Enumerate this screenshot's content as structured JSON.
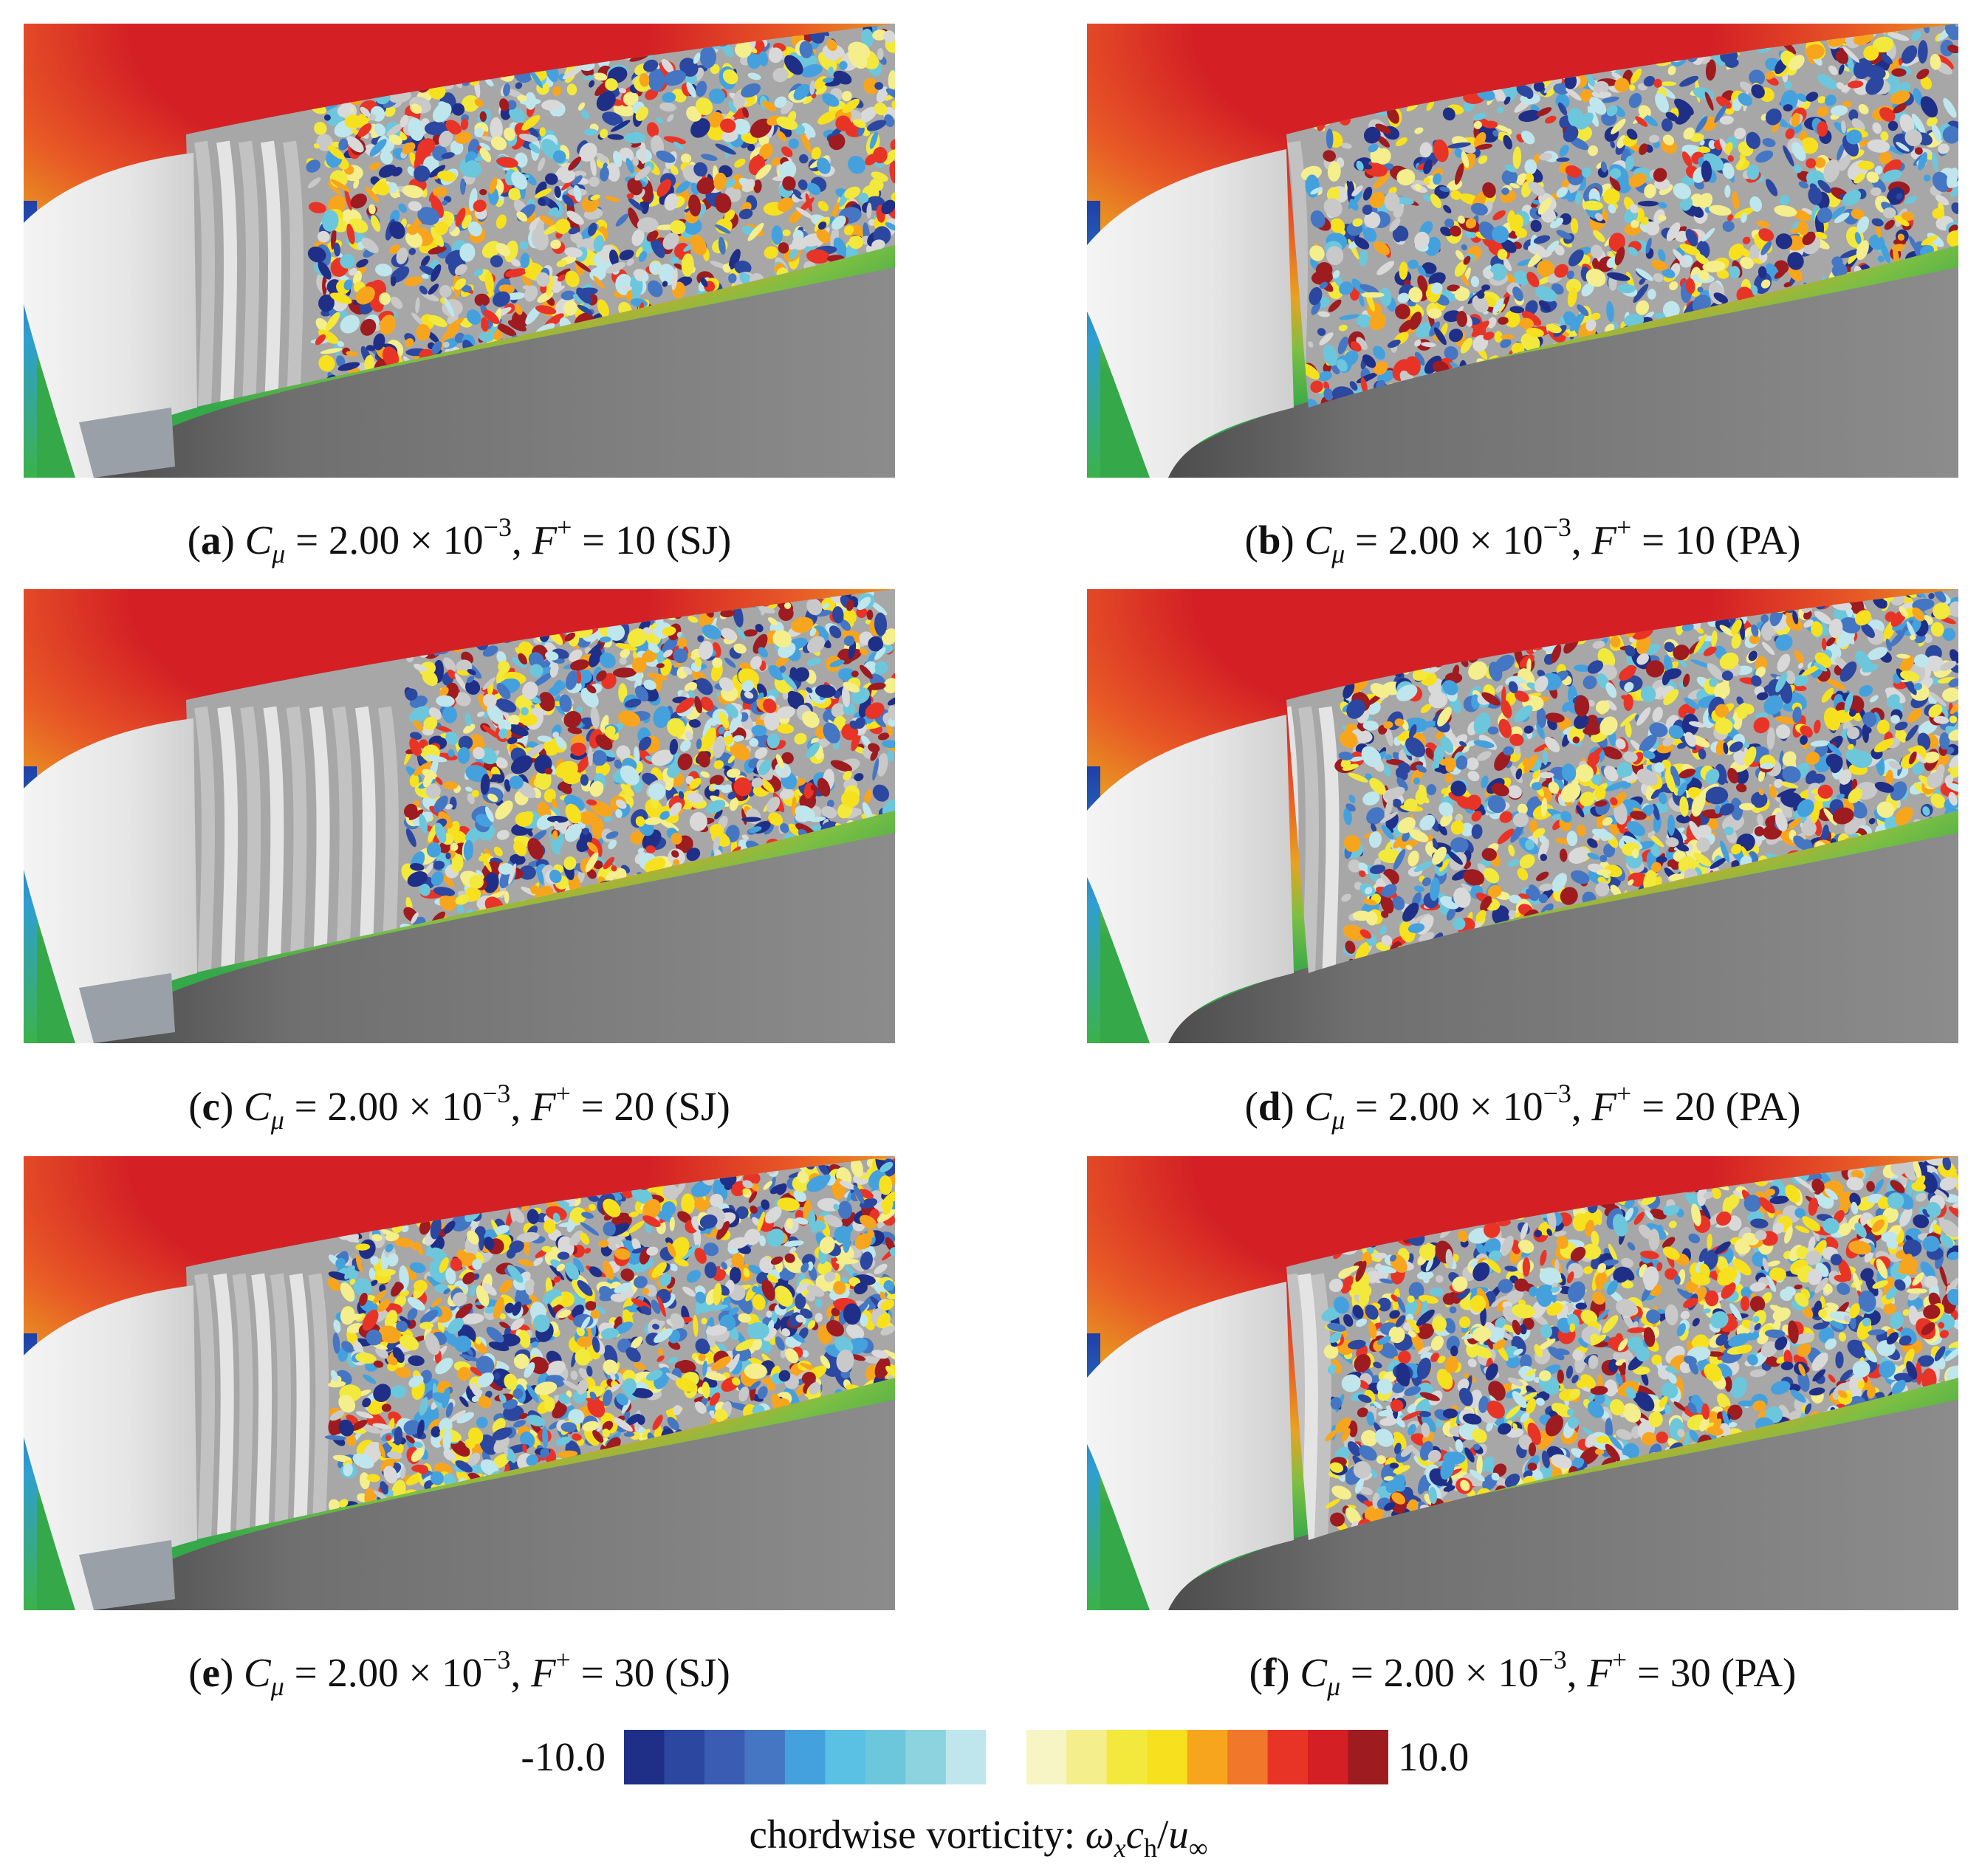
{
  "panels": [
    {
      "id": "a",
      "letter": "a",
      "cmu_value": "2.00",
      "cmu_exp": "−3",
      "fplus_value": "10",
      "method": "(SJ)"
    },
    {
      "id": "b",
      "letter": "b",
      "cmu_value": "2.00",
      "cmu_exp": "−3",
      "fplus_value": "10",
      "method": "(PA)"
    },
    {
      "id": "c",
      "letter": "c",
      "cmu_value": "2.00",
      "cmu_exp": "−3",
      "fplus_value": "20",
      "method": "(SJ)"
    },
    {
      "id": "d",
      "letter": "d",
      "cmu_value": "2.00",
      "cmu_exp": "−3",
      "fplus_value": "20",
      "method": "(PA)"
    },
    {
      "id": "e",
      "letter": "e",
      "cmu_value": "2.00",
      "cmu_exp": "−3",
      "fplus_value": "30",
      "method": "(SJ)"
    },
    {
      "id": "f",
      "letter": "f",
      "cmu_value": "2.00",
      "cmu_exp": "−3",
      "fplus_value": "30",
      "method": "(PA)"
    }
  ],
  "colorbar": {
    "min_label": "-10.0",
    "max_label": "10.0",
    "title_text": "chordwise vorticity: ",
    "colors": [
      "#1f2f87",
      "#2b47a0",
      "#3b5cb3",
      "#4476c3",
      "#45a1de",
      "#5ac0e4",
      "#6dc7dc",
      "#8cd2df",
      "#bfe6ec",
      "#ffffff",
      "#f8f5c4",
      "#f4ee8c",
      "#f3e93c",
      "#f7e11f",
      "#f8a51e",
      "#f1782a",
      "#e83427",
      "#d42025",
      "#9e1b20"
    ]
  }
}
